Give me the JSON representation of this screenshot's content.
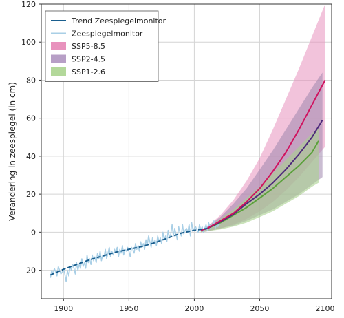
{
  "chart_data": {
    "type": "line",
    "title": "",
    "xlabel": "",
    "ylabel": "Verandering in zeespiegel (in cm)",
    "xlim": [
      1883,
      2105
    ],
    "ylim": [
      -35,
      120
    ],
    "xticks": [
      1900,
      1950,
      2000,
      2050,
      2100
    ],
    "yticks": [
      -20,
      0,
      20,
      40,
      60,
      80,
      100,
      120
    ],
    "grid": true,
    "legend_position": "top-left",
    "series": [
      {
        "name": "Trend Zeespiegelmonitor",
        "kind": "line",
        "color": "#1a5e8e",
        "dashed": true,
        "x": [
          1890,
          1900,
          1910,
          1920,
          1930,
          1940,
          1950,
          1960,
          1970,
          1980,
          1990,
          2000,
          2010
        ],
        "y": [
          -22.5,
          -19.5,
          -17,
          -14.5,
          -12.5,
          -10.5,
          -9,
          -7.5,
          -5.5,
          -3,
          -0.5,
          1,
          2
        ]
      },
      {
        "name": "Zeespiegelmonitor",
        "kind": "line",
        "color": "#a9cfe6",
        "x": [
          1890,
          1891,
          1892,
          1893,
          1894,
          1895,
          1896,
          1897,
          1898,
          1899,
          1900,
          1901,
          1902,
          1903,
          1904,
          1905,
          1906,
          1907,
          1908,
          1909,
          1910,
          1911,
          1912,
          1913,
          1914,
          1915,
          1916,
          1917,
          1918,
          1919,
          1920,
          1921,
          1922,
          1923,
          1924,
          1925,
          1926,
          1927,
          1928,
          1929,
          1930,
          1931,
          1932,
          1933,
          1934,
          1935,
          1936,
          1937,
          1938,
          1939,
          1940,
          1941,
          1942,
          1943,
          1944,
          1945,
          1946,
          1947,
          1948,
          1949,
          1950,
          1951,
          1952,
          1953,
          1954,
          1955,
          1956,
          1957,
          1958,
          1959,
          1960,
          1961,
          1962,
          1963,
          1964,
          1965,
          1966,
          1967,
          1968,
          1969,
          1970,
          1971,
          1972,
          1973,
          1974,
          1975,
          1976,
          1977,
          1978,
          1979,
          1980,
          1981,
          1982,
          1983,
          1984,
          1985,
          1986,
          1987,
          1988,
          1989,
          1990,
          1991,
          1992,
          1993,
          1994,
          1995,
          1996,
          1997,
          1998,
          1999,
          2000,
          2001,
          2002,
          2003,
          2004,
          2005,
          2006,
          2007,
          2008,
          2009,
          2010,
          2011,
          2012,
          2013,
          2014,
          2015,
          2016,
          2017,
          2018,
          2019,
          2020
        ],
        "y": [
          -24,
          -20,
          -22,
          -19,
          -21,
          -23,
          -18,
          -20,
          -22,
          -21,
          -19,
          -22,
          -26,
          -20,
          -23,
          -18,
          -20,
          -17,
          -19,
          -22,
          -16,
          -20,
          -17,
          -19,
          -14,
          -18,
          -16,
          -19,
          -12,
          -16,
          -14,
          -17,
          -12,
          -15,
          -13,
          -16,
          -11,
          -14,
          -10,
          -15,
          -12,
          -13,
          -9,
          -14,
          -11,
          -8,
          -13,
          -10,
          -12,
          -9,
          -11,
          -8,
          -13,
          -9,
          -11,
          -7,
          -12,
          -9,
          -10,
          -8,
          -10,
          -13,
          -8,
          -9,
          -11,
          -6,
          -9,
          -7,
          -10,
          -5,
          -8,
          -6,
          -9,
          -4,
          -7,
          -2,
          -5,
          -8,
          -3,
          -6,
          -4,
          -7,
          -2,
          -5,
          -3,
          -6,
          0,
          -4,
          -2,
          -5,
          1,
          -3,
          -1,
          4,
          -2,
          2,
          -1,
          -4,
          3,
          0,
          -2,
          4,
          -1,
          1,
          2,
          0,
          4,
          -2,
          5,
          1,
          2,
          3,
          1,
          0,
          4,
          1,
          3,
          0,
          2,
          4,
          1,
          5,
          2,
          4,
          3,
          6,
          2,
          4,
          3,
          5,
          4
        ]
      },
      {
        "name": "SSP5-8.5",
        "kind": "band",
        "color": "#e892bd",
        "opacity": 0.55,
        "x": [
          2005,
          2010,
          2020,
          2030,
          2040,
          2050,
          2060,
          2070,
          2080,
          2090,
          2100
        ],
        "lower": [
          0,
          0.5,
          2,
          4,
          7,
          11,
          16,
          22,
          29,
          37,
          45
        ],
        "upper": [
          1,
          3,
          9,
          17,
          27,
          39,
          54,
          70,
          86,
          103,
          120
        ]
      },
      {
        "name": "SSP2-4.5",
        "kind": "band",
        "color": "#9f86ad",
        "opacity": 0.55,
        "x": [
          2005,
          2010,
          2020,
          2030,
          2040,
          2050,
          2060,
          2070,
          2080,
          2090,
          2098
        ],
        "lower": [
          0,
          0.5,
          2,
          3.5,
          6,
          9,
          12,
          16,
          20,
          25,
          29
        ],
        "upper": [
          1,
          3,
          8,
          15,
          23,
          33,
          43,
          54,
          65,
          76,
          84
        ]
      },
      {
        "name": "SSP1-2.6",
        "kind": "band",
        "color": "#a8d08d",
        "opacity": 0.6,
        "x": [
          2005,
          2010,
          2020,
          2030,
          2040,
          2050,
          2060,
          2070,
          2080,
          2090,
          2095
        ],
        "lower": [
          0,
          0.5,
          1.5,
          3,
          5,
          8,
          11,
          15,
          19,
          24,
          26
        ],
        "upper": [
          1,
          2.5,
          7,
          12,
          18,
          24,
          31,
          38,
          45,
          52,
          55
        ]
      },
      {
        "name": "SSP5-8.5 median",
        "kind": "line",
        "color": "#d0125e",
        "x": [
          2005,
          2010,
          2020,
          2030,
          2040,
          2050,
          2060,
          2070,
          2080,
          2090,
          2100
        ],
        "y": [
          1,
          2,
          6,
          10,
          16,
          23,
          32,
          42,
          54,
          67,
          80
        ]
      },
      {
        "name": "SSP2-4.5 median",
        "kind": "line",
        "color": "#4e2a7b",
        "x": [
          2005,
          2010,
          2020,
          2030,
          2040,
          2050,
          2060,
          2070,
          2080,
          2090,
          2098
        ],
        "y": [
          1,
          2,
          5.5,
          9.5,
          15,
          20,
          26,
          33,
          41,
          50,
          59
        ]
      },
      {
        "name": "SSP1-2.6 median",
        "kind": "line",
        "color": "#5aa03a",
        "x": [
          2005,
          2010,
          2020,
          2030,
          2040,
          2050,
          2060,
          2070,
          2080,
          2090,
          2095
        ],
        "y": [
          1,
          2,
          5,
          9,
          13,
          18,
          23,
          29,
          35,
          42,
          48
        ]
      }
    ],
    "legend": [
      {
        "label": "Trend Zeespiegelmonitor",
        "symbol": "line",
        "color": "#1a5e8e"
      },
      {
        "label": "Zeespiegelmonitor",
        "symbol": "line",
        "color": "#a9cfe6"
      },
      {
        "label": "SSP5-8.5",
        "symbol": "box",
        "color": "#e892bd"
      },
      {
        "label": "SSP2-4.5",
        "symbol": "box",
        "color": "#b79fc6"
      },
      {
        "label": "SSP1-2.6",
        "symbol": "box",
        "color": "#b3d89a"
      }
    ]
  }
}
